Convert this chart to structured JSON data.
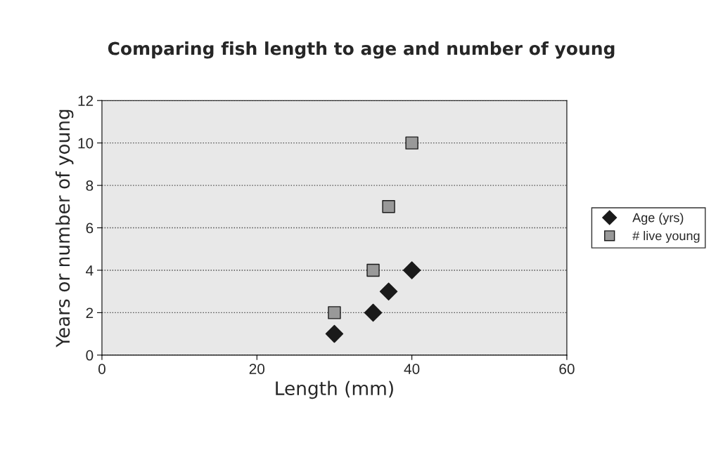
{
  "chart_data": {
    "type": "scatter",
    "title": "Comparing fish length to age and number of young",
    "xlabel": "Length (mm)",
    "ylabel": "Years or number of young",
    "series": [
      {
        "name": "Age (yrs)",
        "color": "#1a1a1a",
        "marker": "diamond",
        "x": [
          30,
          35,
          37,
          40
        ],
        "values": [
          1,
          2,
          3,
          4
        ]
      },
      {
        "name": "# live young",
        "color": "#999999",
        "marker": "square",
        "x": [
          30,
          35,
          37,
          40
        ],
        "values": [
          2,
          4,
          7,
          10
        ]
      }
    ],
    "xlim": [
      0,
      60
    ],
    "xticks": [
      0,
      20,
      40,
      60
    ],
    "ylim": [
      0,
      12
    ],
    "yticks": [
      0,
      2,
      4,
      6,
      8,
      10,
      12
    ],
    "grid": "y",
    "legend": "right"
  }
}
